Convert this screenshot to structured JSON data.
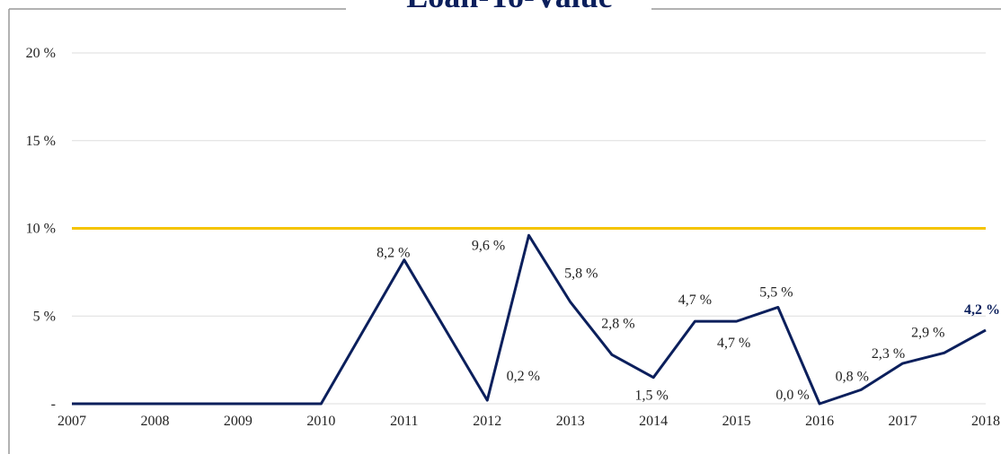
{
  "chart_data": {
    "type": "line",
    "title": "Loan-To-Value",
    "x": [
      2007,
      2008,
      2009,
      2010,
      2011,
      2012,
      2012.5,
      2013,
      2013.5,
      2014,
      2014.5,
      2015,
      2015.5,
      2016,
      2016.5,
      2017,
      2017.5,
      2018
    ],
    "series": [
      {
        "name": "Loan-To-Value",
        "color": "#0b1f5c",
        "values": [
          0,
          0,
          0,
          0,
          8.2,
          0.2,
          9.6,
          5.8,
          2.8,
          1.5,
          4.7,
          4.7,
          5.5,
          0.0,
          0.8,
          2.3,
          2.9,
          4.2
        ],
        "value_labels": [
          null,
          null,
          null,
          null,
          "8,2 %",
          "0,2 %",
          "9,6 %",
          "5,8 %",
          "2,8 %",
          "1,5 %",
          "4,7 %",
          "4,7 %",
          "5,5 %",
          "0,0 %",
          "0,8 %",
          "2,3 %",
          "2,9 %",
          "4,2 %"
        ]
      }
    ],
    "reference_line": {
      "value": 10,
      "color": "#f5c400"
    },
    "xlim": [
      2007,
      2018
    ],
    "xticks": [
      2007,
      2008,
      2009,
      2010,
      2011,
      2012,
      2013,
      2014,
      2015,
      2016,
      2017,
      2018
    ],
    "ylim": [
      0,
      20
    ],
    "yticks": [
      {
        "value": 0,
        "label": "-"
      },
      {
        "value": 5,
        "label": "5 %"
      },
      {
        "value": 10,
        "label": "10 %"
      },
      {
        "value": 15,
        "label": "15 %"
      },
      {
        "value": 20,
        "label": "20 %"
      }
    ],
    "grid": true
  }
}
